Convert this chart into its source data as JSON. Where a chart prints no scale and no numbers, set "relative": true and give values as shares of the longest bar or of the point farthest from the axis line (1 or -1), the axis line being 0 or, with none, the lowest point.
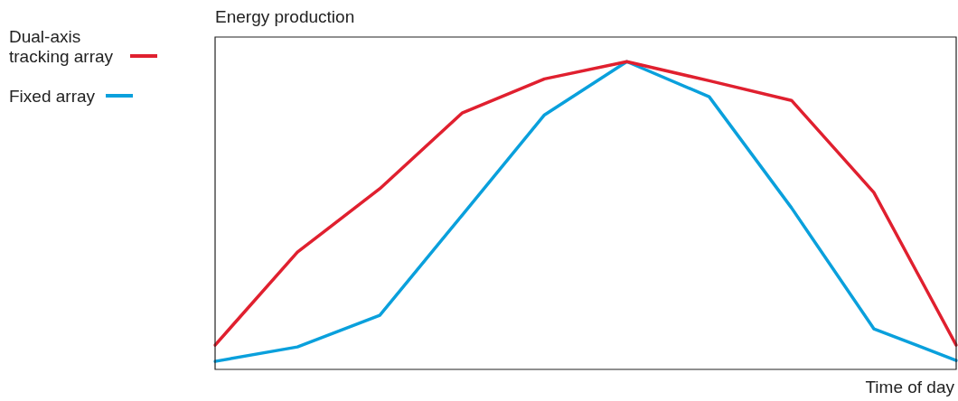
{
  "chart_data": {
    "type": "line",
    "relative": true,
    "ylabel": "Energy production",
    "xlabel": "Time of day",
    "legend": "left",
    "grid": false,
    "marker": "none",
    "line_style": "solid",
    "categories": [
      null,
      null,
      null,
      null,
      null,
      null,
      null,
      null,
      null,
      null
    ],
    "series": [
      {
        "name": "Dual-axis tracking array",
        "color": "#e0202f",
        "values": [
          0.079,
          0.381,
          0.587,
          0.833,
          0.944,
          1,
          0.938,
          0.874,
          0.575,
          0.079
        ]
      },
      {
        "name": "Fixed array",
        "color": "#0aa0dc",
        "values": [
          0.026,
          0.073,
          0.176,
          0.501,
          0.827,
          1,
          0.886,
          0.525,
          0.132,
          0.029
        ]
      }
    ]
  }
}
